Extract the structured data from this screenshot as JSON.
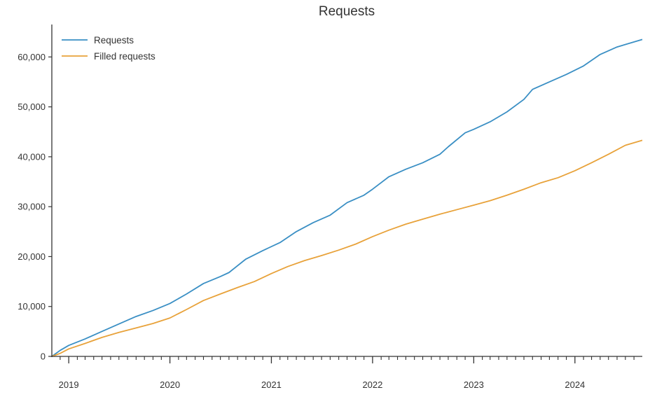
{
  "chart_data": {
    "type": "line",
    "title": "Requests",
    "xlabel": "",
    "ylabel": "",
    "x_axis": {
      "type": "date",
      "range": [
        "2018-11-01",
        "2024-08-31"
      ],
      "tick_labels": [
        "2019",
        "2020",
        "2021",
        "2022",
        "2023",
        "2024"
      ],
      "tick_values": [
        "2019-01-01",
        "2020-01-01",
        "2021-01-01",
        "2022-01-01",
        "2023-01-01",
        "2024-01-01"
      ]
    },
    "y_axis": {
      "range": [
        0,
        66500
      ],
      "tick_values": [
        0,
        10000,
        20000,
        30000,
        40000,
        50000,
        60000
      ],
      "tick_labels": [
        "0",
        "10,000",
        "20,000",
        "30,000",
        "40,000",
        "50,000",
        "60,000"
      ]
    },
    "grid": false,
    "legend": {
      "position": "top-left"
    },
    "series": [
      {
        "name": "Requests",
        "color": "#3a8fc4",
        "points": [
          [
            "2018-11-01",
            0
          ],
          [
            "2018-12-01",
            1200
          ],
          [
            "2019-01-01",
            2200
          ],
          [
            "2019-03-01",
            3500
          ],
          [
            "2019-05-01",
            5000
          ],
          [
            "2019-07-01",
            6500
          ],
          [
            "2019-09-01",
            8000
          ],
          [
            "2019-11-01",
            9200
          ],
          [
            "2020-01-01",
            10600
          ],
          [
            "2020-03-01",
            12500
          ],
          [
            "2020-05-01",
            14600
          ],
          [
            "2020-07-01",
            16000
          ],
          [
            "2020-08-01",
            16800
          ],
          [
            "2020-10-01",
            19500
          ],
          [
            "2020-12-01",
            21200
          ],
          [
            "2021-02-01",
            22800
          ],
          [
            "2021-04-01",
            25000
          ],
          [
            "2021-06-01",
            26800
          ],
          [
            "2021-08-01",
            28300
          ],
          [
            "2021-10-01",
            30800
          ],
          [
            "2021-12-01",
            32300
          ],
          [
            "2022-01-01",
            33500
          ],
          [
            "2022-03-01",
            36000
          ],
          [
            "2022-05-01",
            37500
          ],
          [
            "2022-07-01",
            38800
          ],
          [
            "2022-09-01",
            40500
          ],
          [
            "2022-10-01",
            42000
          ],
          [
            "2022-12-01",
            44800
          ],
          [
            "2023-01-01",
            45500
          ],
          [
            "2023-03-01",
            47000
          ],
          [
            "2023-05-01",
            49000
          ],
          [
            "2023-07-01",
            51500
          ],
          [
            "2023-08-01",
            53500
          ],
          [
            "2023-10-01",
            55000
          ],
          [
            "2023-12-01",
            56500
          ],
          [
            "2024-02-01",
            58200
          ],
          [
            "2024-04-01",
            60500
          ],
          [
            "2024-06-01",
            62000
          ],
          [
            "2024-08-31",
            63500
          ]
        ]
      },
      {
        "name": "Filled requests",
        "color": "#e8a23a",
        "points": [
          [
            "2018-11-01",
            0
          ],
          [
            "2018-12-01",
            600
          ],
          [
            "2019-01-01",
            1500
          ],
          [
            "2019-03-01",
            2600
          ],
          [
            "2019-05-01",
            3800
          ],
          [
            "2019-07-01",
            4800
          ],
          [
            "2019-09-01",
            5700
          ],
          [
            "2019-11-01",
            6600
          ],
          [
            "2020-01-01",
            7700
          ],
          [
            "2020-03-01",
            9400
          ],
          [
            "2020-05-01",
            11200
          ],
          [
            "2020-07-01",
            12500
          ],
          [
            "2020-09-01",
            13800
          ],
          [
            "2020-11-01",
            15000
          ],
          [
            "2021-01-01",
            16600
          ],
          [
            "2021-03-01",
            18000
          ],
          [
            "2021-05-01",
            19200
          ],
          [
            "2021-07-01",
            20200
          ],
          [
            "2021-09-01",
            21300
          ],
          [
            "2021-11-01",
            22500
          ],
          [
            "2022-01-01",
            24000
          ],
          [
            "2022-03-01",
            25300
          ],
          [
            "2022-05-01",
            26500
          ],
          [
            "2022-07-01",
            27500
          ],
          [
            "2022-09-01",
            28500
          ],
          [
            "2022-11-01",
            29400
          ],
          [
            "2023-01-01",
            30300
          ],
          [
            "2023-03-01",
            31200
          ],
          [
            "2023-05-01",
            32300
          ],
          [
            "2023-07-01",
            33500
          ],
          [
            "2023-09-01",
            34800
          ],
          [
            "2023-11-01",
            35800
          ],
          [
            "2024-01-01",
            37200
          ],
          [
            "2024-03-01",
            38800
          ],
          [
            "2024-05-01",
            40500
          ],
          [
            "2024-07-01",
            42300
          ],
          [
            "2024-08-31",
            43300
          ]
        ]
      }
    ]
  }
}
